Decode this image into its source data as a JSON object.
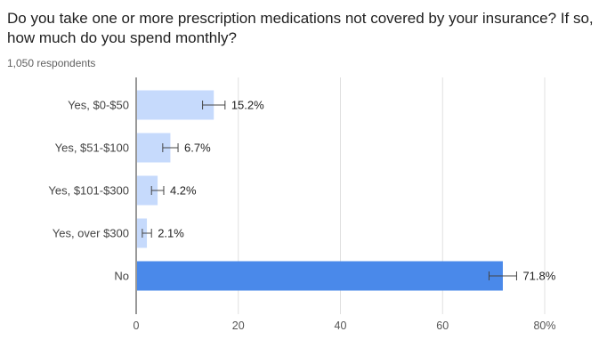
{
  "chart_data": {
    "type": "bar",
    "orientation": "horizontal",
    "title": "Do you take one or more prescription medications not covered by your insurance? If so, how much do you spend monthly?",
    "subtitle": "1,050 respondents",
    "categories": [
      "Yes, $0-$50",
      "Yes, $51-$100",
      "Yes, $101-$300",
      "Yes, over $300",
      "No"
    ],
    "values": [
      15.2,
      6.7,
      4.2,
      2.1,
      71.8
    ],
    "data_labels": [
      "15.2%",
      "6.7%",
      "4.2%",
      "2.1%",
      "71.8%"
    ],
    "error_margin": [
      2.2,
      1.5,
      1.2,
      0.9,
      2.7
    ],
    "highlight_index": 4,
    "xlim": [
      0,
      80
    ],
    "x_ticks": [
      0,
      20,
      40,
      60,
      80
    ],
    "x_tick_labels": [
      "0",
      "20",
      "40",
      "60",
      "80%"
    ],
    "grid": "vertical",
    "colors": {
      "bar": "#c6dafc",
      "highlight": "#4a89ea",
      "grid": "#e0e0e0",
      "axis": "#333333",
      "error": "#444444"
    }
  }
}
